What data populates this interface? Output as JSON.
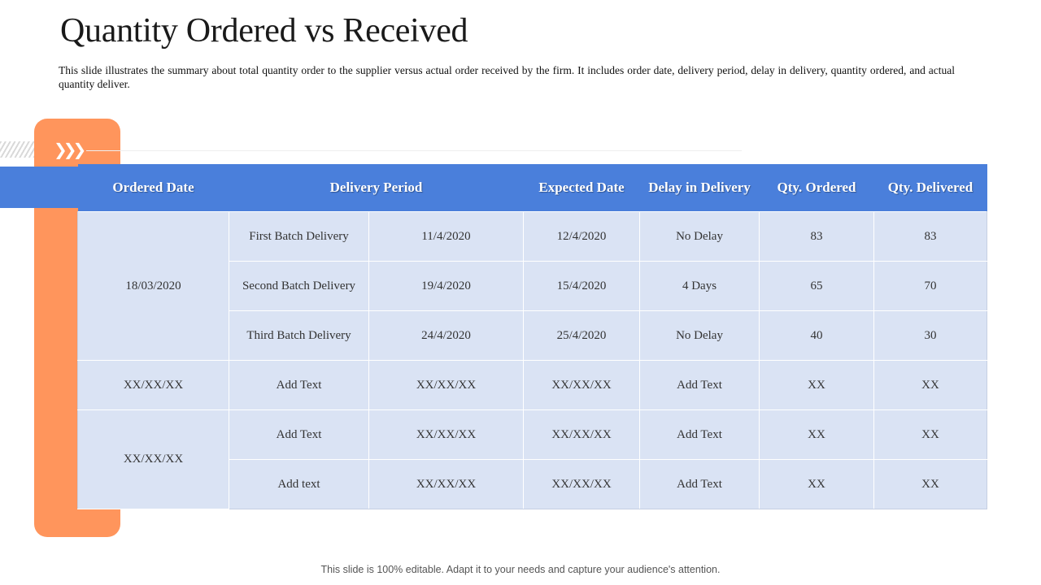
{
  "slide": {
    "title": "Quantity Ordered vs Received",
    "description": "This slide illustrates the summary about total quantity order to the supplier versus actual order received by the firm. It includes order date, delivery period, delay in delivery, quantity ordered, and actual quantity deliver.",
    "footer": "This slide is 100% editable. Adapt it to your needs and capture your audience's attention."
  },
  "decor": {
    "chevrons": "❯❯❯"
  },
  "table": {
    "headers": {
      "ordered_date": "Ordered Date",
      "delivery_period": "Delivery Period",
      "expected_date": "Expected Date",
      "delay": "Delay in Delivery",
      "qty_ordered": "Qty. Ordered",
      "qty_delivered": "Qty. Delivered"
    },
    "groups": [
      {
        "ordered_date": "18/03/2020"
      },
      {
        "ordered_date": "XX/XX/XX"
      },
      {
        "ordered_date": "XX/XX/XX"
      }
    ],
    "rows": [
      {
        "batch": "First Batch  Delivery",
        "period_date": "11/4/2020",
        "expected": "12/4/2020",
        "delay": "No Delay",
        "ordered": "83",
        "delivered": "83"
      },
      {
        "batch": "Second Batch  Delivery",
        "period_date": "19/4/2020",
        "expected": "15/4/2020",
        "delay": "4 Days",
        "ordered": "65",
        "delivered": "70"
      },
      {
        "batch": "Third  Batch  Delivery",
        "period_date": "24/4/2020",
        "expected": "25/4/2020",
        "delay": "No Delay",
        "ordered": "40",
        "delivered": "30"
      },
      {
        "batch": "Add Text",
        "period_date": "XX/XX/XX",
        "expected": "XX/XX/XX",
        "delay": "Add Text",
        "ordered": "XX",
        "delivered": "XX"
      },
      {
        "batch": "Add Text",
        "period_date": "XX/XX/XX",
        "expected": "XX/XX/XX",
        "delay": "Add Text",
        "ordered": "XX",
        "delivered": "XX"
      },
      {
        "batch": "Add text",
        "period_date": "XX/XX/XX",
        "expected": "XX/XX/XX",
        "delay": "Add Text",
        "ordered": "XX",
        "delivered": "XX"
      }
    ]
  }
}
